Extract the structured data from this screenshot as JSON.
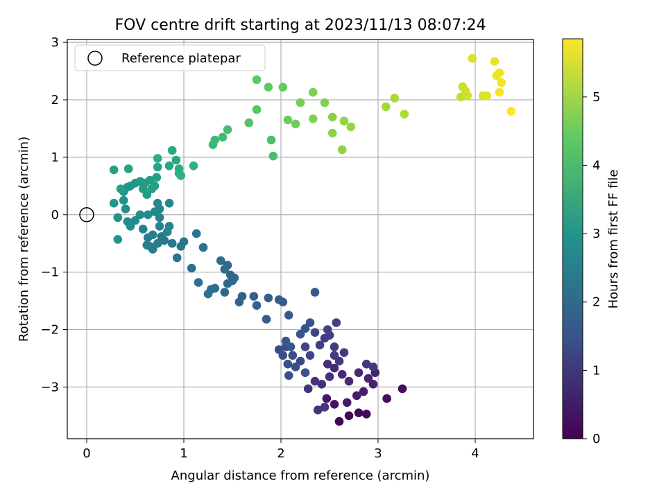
{
  "chart_data": {
    "type": "scatter",
    "title": "FOV centre drift starting at 2023/11/13 08:07:24",
    "xlabel": "Angular distance from reference (arcmin)",
    "ylabel": "Rotation from reference (arcmin)",
    "xlim": [
      -0.2,
      4.6
    ],
    "ylim": [
      -3.9,
      3.05
    ],
    "xticks": [
      0,
      1,
      2,
      3,
      4
    ],
    "yticks": [
      -3,
      -2,
      -1,
      0,
      1,
      2,
      3
    ],
    "grid": true,
    "legend": {
      "position": "top-left",
      "entries": [
        "Reference platepar"
      ]
    },
    "reference_point": {
      "x": 0,
      "y": 0
    },
    "colorbar": {
      "label": "Hours from first FF file",
      "min": 0,
      "max": 5.85,
      "ticks": [
        0,
        1,
        2,
        3,
        4,
        5
      ],
      "colormap": "viridis"
    },
    "points": [
      [
        2.6,
        -3.6,
        0.05
      ],
      [
        2.7,
        -3.5,
        0.1
      ],
      [
        2.8,
        -3.45,
        0.12
      ],
      [
        2.88,
        -3.47,
        0.15
      ],
      [
        3.25,
        -3.03,
        0.2
      ],
      [
        3.09,
        -3.2,
        0.25
      ],
      [
        2.55,
        -3.3,
        0.3
      ],
      [
        2.47,
        -3.2,
        0.35
      ],
      [
        2.68,
        -3.27,
        0.4
      ],
      [
        2.78,
        -3.15,
        0.45
      ],
      [
        2.85,
        -3.08,
        0.5
      ],
      [
        2.95,
        -2.95,
        0.55
      ],
      [
        2.97,
        -2.75,
        0.6
      ],
      [
        2.9,
        -2.85,
        0.62
      ],
      [
        2.8,
        -2.75,
        0.65
      ],
      [
        2.7,
        -2.9,
        0.68
      ],
      [
        2.63,
        -2.78,
        0.7
      ],
      [
        2.55,
        -2.67,
        0.72
      ],
      [
        2.48,
        -2.6,
        0.75
      ],
      [
        2.5,
        -2.82,
        0.78
      ],
      [
        2.42,
        -2.95,
        0.8
      ],
      [
        2.35,
        -2.9,
        0.82
      ],
      [
        2.28,
        -3.03,
        0.85
      ],
      [
        2.38,
        -3.4,
        0.88
      ],
      [
        2.45,
        -3.35,
        0.9
      ],
      [
        2.88,
        -2.6,
        0.92
      ],
      [
        2.95,
        -2.65,
        0.95
      ],
      [
        2.6,
        -2.55,
        0.98
      ],
      [
        2.55,
        -2.45,
        1.0
      ],
      [
        2.65,
        -2.4,
        1.02
      ],
      [
        2.55,
        -2.3,
        1.05
      ],
      [
        2.4,
        -2.27,
        1.08
      ],
      [
        2.45,
        -2.15,
        1.1
      ],
      [
        2.5,
        -2.1,
        1.12
      ],
      [
        2.57,
        -1.88,
        1.15
      ],
      [
        2.48,
        -2.0,
        1.18
      ],
      [
        2.35,
        -2.05,
        1.2
      ],
      [
        2.25,
        -2.3,
        1.22
      ],
      [
        2.3,
        -2.45,
        1.25
      ],
      [
        2.2,
        -2.55,
        1.28
      ],
      [
        2.12,
        -2.45,
        1.3
      ],
      [
        2.05,
        -2.3,
        1.32
      ],
      [
        1.98,
        -2.35,
        1.35
      ],
      [
        2.02,
        -2.45,
        1.38
      ],
      [
        2.07,
        -2.6,
        1.4
      ],
      [
        2.15,
        -2.65,
        1.42
      ],
      [
        2.25,
        -2.75,
        1.45
      ],
      [
        2.08,
        -2.8,
        1.48
      ],
      [
        2.3,
        -1.88,
        1.5
      ],
      [
        2.25,
        -1.98,
        1.52
      ],
      [
        2.2,
        -2.08,
        1.55
      ],
      [
        2.1,
        -2.3,
        1.58
      ],
      [
        2.05,
        -2.2,
        1.6
      ],
      [
        2.35,
        -1.35,
        1.62
      ],
      [
        2.08,
        -1.75,
        1.65
      ],
      [
        2.02,
        -1.52,
        1.68
      ],
      [
        1.98,
        -1.48,
        1.7
      ],
      [
        1.87,
        -1.45,
        1.72
      ],
      [
        1.85,
        -1.82,
        1.75
      ],
      [
        1.72,
        -1.42,
        1.78
      ],
      [
        1.75,
        -1.58,
        1.8
      ],
      [
        1.6,
        -1.42,
        1.82
      ],
      [
        1.57,
        -1.52,
        1.85
      ],
      [
        1.52,
        -1.1,
        1.88
      ],
      [
        1.48,
        -1.05,
        1.9
      ],
      [
        1.5,
        -1.15,
        1.92
      ],
      [
        1.45,
        -1.2,
        1.95
      ],
      [
        1.42,
        -1.35,
        1.98
      ],
      [
        1.45,
        -0.88,
        2.0
      ],
      [
        1.42,
        -0.95,
        2.02
      ],
      [
        1.38,
        -0.8,
        2.05
      ],
      [
        1.32,
        -1.28,
        2.08
      ],
      [
        1.28,
        -1.3,
        2.1
      ],
      [
        1.25,
        -1.38,
        2.12
      ],
      [
        1.15,
        -1.18,
        2.15
      ],
      [
        1.08,
        -0.93,
        2.18
      ],
      [
        1.2,
        -0.57,
        2.2
      ],
      [
        1.13,
        -0.33,
        2.22
      ],
      [
        1.0,
        -0.47,
        2.25
      ],
      [
        0.97,
        -0.55,
        2.28
      ],
      [
        0.93,
        -0.75,
        2.3
      ],
      [
        0.88,
        -0.5,
        2.32
      ],
      [
        0.8,
        -0.45,
        2.35
      ],
      [
        0.77,
        -0.38,
        2.38
      ],
      [
        0.73,
        -0.5,
        2.4
      ],
      [
        0.68,
        -0.6,
        2.42
      ],
      [
        0.65,
        -0.55,
        2.45
      ],
      [
        0.62,
        -0.53,
        2.48
      ],
      [
        0.63,
        -0.4,
        2.5
      ],
      [
        0.58,
        -0.25,
        2.52
      ],
      [
        0.68,
        -0.35,
        2.55
      ],
      [
        0.75,
        -0.2,
        2.58
      ],
      [
        0.75,
        -0.05,
        2.6
      ],
      [
        0.75,
        0.1,
        2.62
      ],
      [
        0.85,
        -0.2,
        2.65
      ],
      [
        0.83,
        -0.3,
        2.68
      ],
      [
        0.85,
        0.2,
        2.7
      ],
      [
        0.73,
        0.2,
        2.72
      ],
      [
        0.7,
        0.05,
        2.75
      ],
      [
        0.63,
        0.0,
        2.78
      ],
      [
        0.55,
        0.0,
        2.8
      ],
      [
        0.5,
        -0.1,
        2.82
      ],
      [
        0.45,
        -0.2,
        2.85
      ],
      [
        0.42,
        -0.12,
        2.88
      ],
      [
        0.4,
        0.1,
        2.9
      ],
      [
        0.38,
        0.25,
        2.92
      ],
      [
        0.32,
        -0.05,
        2.95
      ],
      [
        0.32,
        -0.43,
        2.98
      ],
      [
        0.28,
        0.2,
        3.0
      ],
      [
        0.38,
        0.4,
        3.02
      ],
      [
        0.42,
        0.48,
        3.05
      ],
      [
        0.45,
        0.5,
        3.08
      ],
      [
        0.5,
        0.55,
        3.1
      ],
      [
        0.55,
        0.58,
        3.12
      ],
      [
        0.58,
        0.45,
        3.15
      ],
      [
        0.6,
        0.55,
        3.18
      ],
      [
        0.65,
        0.6,
        3.2
      ],
      [
        0.62,
        0.35,
        3.22
      ],
      [
        0.67,
        0.45,
        3.25
      ],
      [
        0.7,
        0.5,
        3.28
      ],
      [
        0.72,
        0.65,
        3.3
      ],
      [
        0.35,
        0.45,
        3.32
      ],
      [
        0.28,
        0.78,
        3.35
      ],
      [
        0.43,
        0.8,
        3.38
      ],
      [
        0.73,
        0.83,
        3.4
      ],
      [
        0.85,
        0.85,
        3.45
      ],
      [
        0.92,
        0.95,
        3.5
      ],
      [
        0.88,
        1.12,
        3.55
      ],
      [
        0.95,
        0.72,
        3.6
      ],
      [
        0.95,
        0.8,
        3.62
      ],
      [
        0.73,
        0.98,
        3.65
      ],
      [
        0.97,
        0.68,
        3.7
      ],
      [
        1.1,
        0.85,
        3.75
      ],
      [
        1.3,
        1.22,
        3.9
      ],
      [
        1.32,
        1.3,
        3.95
      ],
      [
        1.4,
        1.35,
        4.0
      ],
      [
        1.45,
        1.48,
        4.05
      ],
      [
        1.92,
        1.02,
        4.1
      ],
      [
        1.9,
        1.3,
        4.12
      ],
      [
        1.67,
        1.6,
        4.2
      ],
      [
        1.75,
        1.83,
        4.3
      ],
      [
        1.75,
        2.35,
        4.35
      ],
      [
        1.87,
        2.22,
        4.4
      ],
      [
        2.02,
        2.22,
        4.45
      ],
      [
        2.07,
        1.65,
        4.5
      ],
      [
        2.15,
        1.58,
        4.55
      ],
      [
        2.2,
        1.95,
        4.6
      ],
      [
        2.33,
        2.13,
        4.65
      ],
      [
        2.45,
        1.95,
        4.7
      ],
      [
        2.33,
        1.67,
        4.72
      ],
      [
        2.53,
        1.7,
        4.75
      ],
      [
        2.53,
        1.42,
        4.78
      ],
      [
        2.63,
        1.13,
        4.8
      ],
      [
        2.65,
        1.63,
        4.85
      ],
      [
        2.72,
        1.53,
        4.9
      ],
      [
        3.08,
        1.88,
        5.0
      ],
      [
        3.17,
        2.03,
        5.05
      ],
      [
        3.27,
        1.75,
        5.1
      ],
      [
        3.85,
        2.05,
        5.3
      ],
      [
        3.87,
        2.23,
        5.35
      ],
      [
        3.9,
        2.15,
        5.4
      ],
      [
        3.92,
        2.07,
        5.45
      ],
      [
        3.97,
        2.72,
        5.5
      ],
      [
        4.08,
        2.07,
        5.55
      ],
      [
        4.12,
        2.07,
        5.6
      ],
      [
        4.2,
        2.67,
        5.65
      ],
      [
        4.22,
        2.42,
        5.7
      ],
      [
        4.25,
        2.47,
        5.72
      ],
      [
        4.27,
        2.3,
        5.75
      ],
      [
        4.25,
        2.13,
        5.78
      ],
      [
        4.37,
        1.8,
        5.83
      ]
    ]
  }
}
